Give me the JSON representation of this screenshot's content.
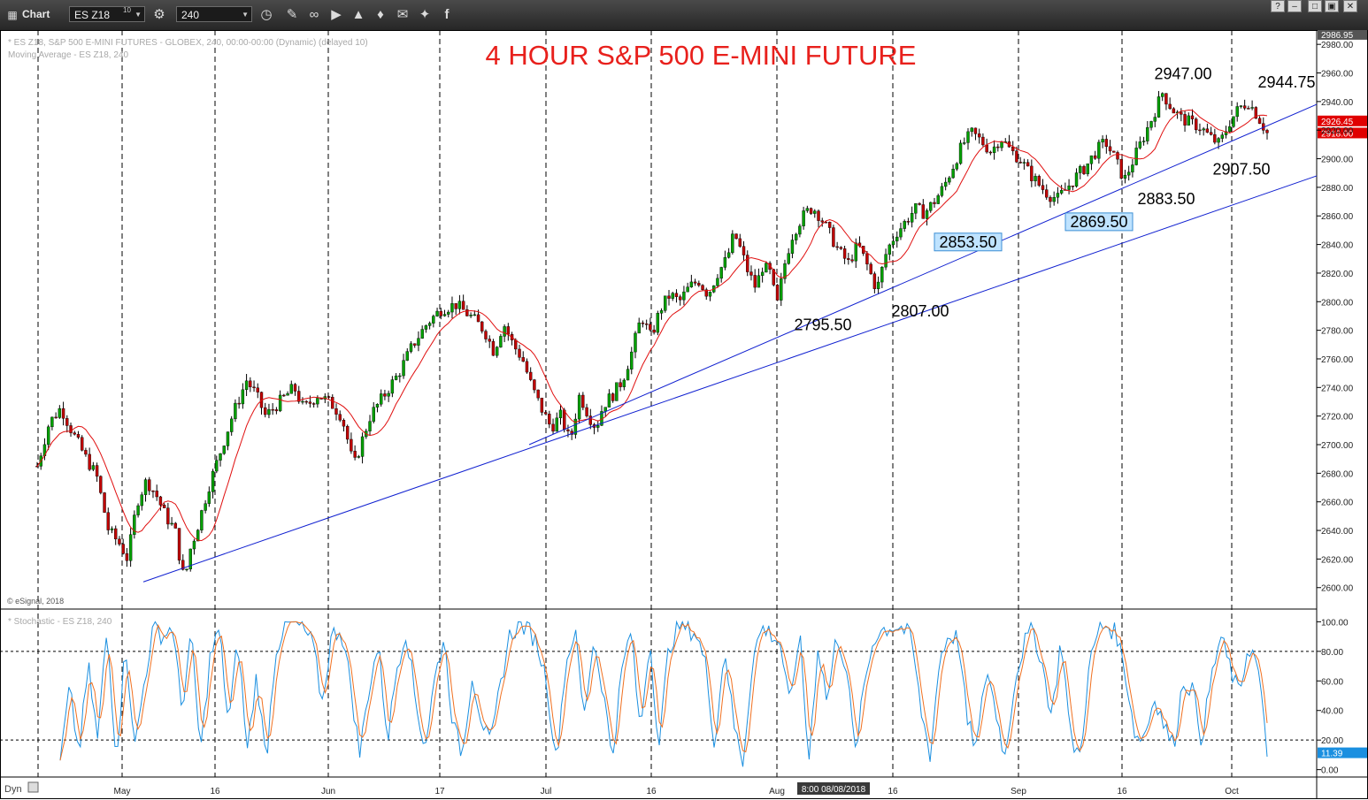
{
  "toolbar": {
    "window_title": "Chart",
    "symbol": "ES Z18",
    "symbol_superscript": "10",
    "interval": "240",
    "window_buttons": [
      "?",
      "–",
      "□",
      "▣",
      "✕"
    ]
  },
  "colors": {
    "title": "#e8201c",
    "candle_up": "#00a000",
    "candle_down": "#c00000",
    "moving_average": "#e01010",
    "trendline": "#1020d0",
    "stoch_k": "#1a8fe0",
    "stoch_d": "#f07020",
    "price_tag": "#e00000",
    "grid": "#000000"
  },
  "chart_data": {
    "type": "candlestick",
    "title": "4 HOUR  S&P 500 E-MINI FUTURE",
    "info_lines": [
      "* ES Z18, S&P 500 E-MINI FUTURES - GLOBEX, 240, 00:00-00:00 (Dynamic) (delayed 10)",
      "Moving Average - ES Z18, 240"
    ],
    "copyright": "© eSignal, 2018",
    "x_labels": [
      "May",
      "16",
      "Jun",
      "17",
      "Jul",
      "16",
      "Aug",
      "16",
      "Sep",
      "16",
      "Oct"
    ],
    "cursor_readout": "8:00 08/08/2018",
    "price_axis": {
      "ylim": [
        2585,
        2990
      ],
      "ticks": [
        2600,
        2620,
        2640,
        2660,
        2680,
        2700,
        2720,
        2740,
        2760,
        2780,
        2800,
        2820,
        2840,
        2860,
        2880,
        2900,
        2920,
        2940,
        2960,
        2980
      ],
      "tick_labels": [
        "2600.00",
        "2620.00",
        "2640.00",
        "2660.00",
        "2680.00",
        "2700.00",
        "2720.00",
        "2740.00",
        "2760.00",
        "2780.00",
        "2800.00",
        "2820.00",
        "2840.00",
        "2860.00",
        "2880.00",
        "2900.00",
        "2920.00",
        "2940.00",
        "2960.00",
        "2980.00"
      ],
      "top_label": "2986.95",
      "price_tags": [
        "2926.45",
        "2918.00"
      ],
      "grid": true
    },
    "price_path": {
      "x_index_range": [
        0,
        329
      ],
      "points": [
        [
          0,
          2685
        ],
        [
          5,
          2715
        ],
        [
          10,
          2726
        ],
        [
          15,
          2708
        ],
        [
          20,
          2692
        ],
        [
          25,
          2678
        ],
        [
          30,
          2640
        ],
        [
          35,
          2630
        ],
        [
          38,
          2620
        ],
        [
          42,
          2660
        ],
        [
          46,
          2675
        ],
        [
          50,
          2665
        ],
        [
          54,
          2650
        ],
        [
          58,
          2640
        ],
        [
          60,
          2620
        ],
        [
          62,
          2604
        ],
        [
          64,
          2625
        ],
        [
          67,
          2640
        ],
        [
          72,
          2670
        ],
        [
          76,
          2690
        ],
        [
          82,
          2720
        ],
        [
          88,
          2745
        ],
        [
          92,
          2735
        ],
        [
          96,
          2720
        ],
        [
          102,
          2730
        ],
        [
          108,
          2740
        ],
        [
          112,
          2725
        ],
        [
          118,
          2735
        ],
        [
          124,
          2728
        ],
        [
          128,
          2720
        ],
        [
          131,
          2700
        ],
        [
          133,
          2684
        ],
        [
          136,
          2700
        ],
        [
          140,
          2720
        ],
        [
          146,
          2735
        ],
        [
          152,
          2750
        ],
        [
          158,
          2770
        ],
        [
          164,
          2785
        ],
        [
          170,
          2795
        ],
        [
          176,
          2798
        ],
        [
          182,
          2790
        ],
        [
          188,
          2780
        ],
        [
          192,
          2765
        ],
        [
          196,
          2785
        ],
        [
          200,
          2770
        ],
        [
          204,
          2760
        ],
        [
          208,
          2740
        ],
        [
          212,
          2725
        ],
        [
          216,
          2712
        ],
        [
          220,
          2720
        ],
        [
          224,
          2702
        ],
        [
          228,
          2735
        ],
        [
          232,
          2720
        ],
        [
          235,
          2712
        ],
        [
          238,
          2728
        ],
        [
          242,
          2735
        ],
        [
          246,
          2745
        ],
        [
          250,
          2765
        ],
        [
          254,
          2790
        ],
        [
          258,
          2775
        ],
        [
          262,
          2795
        ],
        [
          266,
          2805
        ],
        [
          270,
          2800
        ],
        [
          274,
          2810
        ],
        [
          278,
          2815
        ],
        [
          282,
          2805
        ],
        [
          286,
          2820
        ],
        [
          290,
          2830
        ],
        [
          293,
          2848
        ],
        [
          296,
          2835
        ],
        [
          299,
          2820
        ],
        [
          302,
          2810
        ],
        [
          305,
          2825
        ],
        [
          308,
          2820
        ],
        [
          311,
          2797
        ],
        [
          314,
          2825
        ],
        [
          317,
          2845
        ],
        [
          320,
          2855
        ],
        [
          323,
          2862
        ],
        [
          326,
          2866
        ],
        [
          329,
          2860
        ]
      ],
      "note_series_continues": [
        [
          329,
          2860
        ],
        [
          333,
          2848
        ],
        [
          337,
          2835
        ],
        [
          341,
          2827
        ],
        [
          345,
          2840
        ],
        [
          349,
          2825
        ],
        [
          353,
          2808
        ],
        [
          357,
          2835
        ],
        [
          361,
          2848
        ],
        [
          365,
          2856
        ],
        [
          369,
          2865
        ],
        [
          373,
          2862
        ],
        [
          377,
          2870
        ],
        [
          381,
          2880
        ],
        [
          385,
          2895
        ],
        [
          389,
          2910
        ],
        [
          393,
          2918
        ],
        [
          397,
          2912
        ],
        [
          401,
          2905
        ],
        [
          405,
          2915
        ],
        [
          409,
          2906
        ],
        [
          413,
          2900
        ],
        [
          417,
          2890
        ],
        [
          421,
          2882
        ],
        [
          425,
          2875
        ],
        [
          429,
          2872
        ],
        [
          433,
          2880
        ],
        [
          437,
          2888
        ],
        [
          441,
          2895
        ],
        [
          445,
          2905
        ],
        [
          449,
          2912
        ],
        [
          453,
          2900
        ],
        [
          457,
          2885
        ],
        [
          461,
          2900
        ],
        [
          465,
          2915
        ],
        [
          469,
          2930
        ],
        [
          473,
          2946
        ],
        [
          477,
          2935
        ],
        [
          481,
          2928
        ],
        [
          485,
          2925
        ],
        [
          489,
          2922
        ],
        [
          493,
          2915
        ],
        [
          497,
          2910
        ],
        [
          501,
          2925
        ],
        [
          505,
          2935
        ],
        [
          509,
          2940
        ],
        [
          513,
          2930
        ],
        [
          517,
          2918
        ]
      ]
    },
    "annotations": [
      {
        "text": "2947.00",
        "value": 2947.0
      },
      {
        "text": "2944.75",
        "value": 2944.75
      },
      {
        "text": "2907.50",
        "value": 2907.5
      },
      {
        "text": "2883.50",
        "value": 2883.5
      },
      {
        "text": "2869.50",
        "value": 2869.5,
        "boxed": true
      },
      {
        "text": "2853.50",
        "value": 2853.5,
        "boxed": true
      },
      {
        "text": "2807.00",
        "value": 2807.0
      },
      {
        "text": "2795.50",
        "value": 2795.5
      }
    ],
    "trendlines": [
      {
        "from": {
          "date": "May 3",
          "value": 2604
        },
        "to": {
          "date": "Oct 10",
          "value": 2888
        }
      },
      {
        "from": {
          "date": "Jul 2",
          "value": 2700
        },
        "to": {
          "date": "Oct 10",
          "value": 2938
        }
      }
    ],
    "stochastic": {
      "label": "* Stochastic - ES Z18, 240",
      "ylim": [
        -5,
        108
      ],
      "ticks": [
        0,
        20,
        40,
        60,
        80,
        100
      ],
      "tick_labels": [
        "0.00",
        "20.00",
        "40.00",
        "60.00",
        "80.00",
        "100.00"
      ],
      "reference_lines": [
        20,
        80
      ],
      "last_value_label": "11.39",
      "k_points": [
        5,
        55,
        10,
        70,
        20,
        95,
        8,
        85,
        15,
        60,
        98,
        90,
        97,
        40,
        92,
        10,
        75,
        95,
        30,
        88,
        12,
        65,
        5,
        80,
        97,
        99,
        95,
        85,
        45,
        90,
        96,
        60,
        10,
        55,
        85,
        20,
        70,
        95,
        45,
        15,
        60,
        90,
        30,
        10,
        65,
        35,
        15,
        55,
        90,
        98,
        96,
        85,
        60,
        5,
        70,
        95,
        35,
        88,
        55,
        8,
        65,
        95,
        25,
        90,
        15,
        80,
        98,
        96,
        92,
        70,
        15,
        85,
        30,
        5,
        75,
        96,
        92,
        85,
        40,
        95,
        5,
        85,
        45,
        92,
        70,
        10,
        60,
        90,
        95,
        97,
        96,
        88,
        40,
        10,
        75,
        92,
        88,
        30,
        15,
        70,
        40,
        8,
        60,
        85,
        95,
        70,
        35,
        90,
        20,
        10,
        70,
        95,
        98,
        90,
        60,
        20,
        25,
        50,
        30,
        15,
        60,
        55,
        20,
        60,
        90,
        70,
        50,
        85,
        70,
        10
      ]
    }
  }
}
